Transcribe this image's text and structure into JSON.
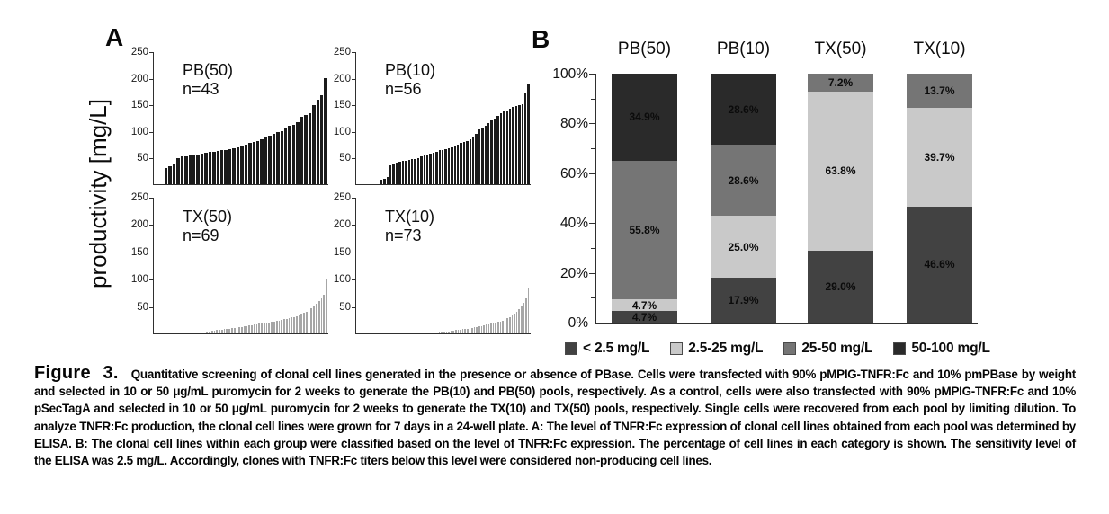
{
  "colors": {
    "panel_a_dark_bars": "#1b1b1b",
    "panel_a_light_bars": "#a6a6a6",
    "axis": "#2f2f2f",
    "cat_lt_2_5": "#424242",
    "cat_2_5_25": "#c9c9c9",
    "cat_25_50": "#757575",
    "cat_50_100": "#2a2a2a"
  },
  "chart_data": [
    {
      "id": "panel-a",
      "panel_label": "A",
      "type": "bar",
      "subtype": "sorted-clone-productivity",
      "ylabel": "productivity [mg/L]",
      "ylim": [
        0,
        250
      ],
      "ytick_labels": [
        "250",
        "200",
        "150",
        "100",
        "50"
      ],
      "ytick_values": [
        250,
        200,
        150,
        100,
        50
      ],
      "grid": false,
      "subplots": [
        {
          "pool": "PB(50)",
          "n_label": "n=43",
          "n": 43,
          "bar_color": "#1b1b1b",
          "values": [
            0,
            0,
            30,
            34,
            37,
            50,
            52,
            53,
            54,
            55,
            56,
            58,
            60,
            61,
            62,
            63,
            64,
            65,
            66,
            68,
            70,
            72,
            75,
            78,
            80,
            82,
            85,
            88,
            92,
            95,
            98,
            100,
            108,
            110,
            112,
            118,
            128,
            131,
            134,
            150,
            160,
            168,
            200
          ]
        },
        {
          "pool": "PB(10)",
          "n_label": "n=56",
          "n": 56,
          "bar_color": "#1b1b1b",
          "values": [
            0,
            0,
            0,
            0,
            0,
            0,
            0,
            8,
            10,
            14,
            35,
            38,
            40,
            42,
            44,
            45,
            46,
            47,
            48,
            50,
            52,
            54,
            56,
            58,
            60,
            62,
            64,
            65,
            66,
            68,
            70,
            72,
            75,
            78,
            80,
            82,
            85,
            90,
            95,
            103,
            105,
            110,
            115,
            120,
            125,
            130,
            135,
            138,
            140,
            143,
            146,
            148,
            150,
            152,
            172,
            188
          ]
        },
        {
          "pool": "TX(50)",
          "n_label": "n=69",
          "n": 69,
          "bar_color": "#a6a6a6",
          "values": [
            0,
            0,
            0,
            0,
            0,
            0,
            0,
            0,
            0,
            0,
            0,
            0,
            0,
            0,
            0,
            0,
            0,
            0,
            0,
            0,
            3,
            4,
            5,
            5,
            6,
            6,
            7,
            8,
            8,
            9,
            10,
            10,
            11,
            12,
            12,
            13,
            14,
            15,
            15,
            16,
            17,
            18,
            18,
            19,
            20,
            20,
            21,
            22,
            23,
            24,
            25,
            26,
            27,
            28,
            29,
            30,
            32,
            34,
            36,
            38,
            40,
            43,
            46,
            50,
            55,
            60,
            65,
            72,
            100
          ]
        },
        {
          "pool": "TX(10)",
          "n_label": "n=73",
          "n": 73,
          "bar_color": "#a6a6a6",
          "values": [
            0,
            0,
            0,
            0,
            0,
            0,
            0,
            0,
            0,
            0,
            0,
            0,
            0,
            0,
            0,
            0,
            0,
            0,
            0,
            0,
            0,
            0,
            0,
            0,
            0,
            0,
            0,
            0,
            0,
            0,
            0,
            0,
            0,
            0,
            2,
            3,
            3,
            4,
            4,
            5,
            5,
            6,
            6,
            7,
            8,
            8,
            9,
            10,
            10,
            11,
            12,
            13,
            14,
            15,
            16,
            17,
            18,
            19,
            20,
            21,
            22,
            24,
            26,
            28,
            30,
            33,
            36,
            40,
            44,
            50,
            57,
            65,
            85
          ]
        }
      ]
    },
    {
      "id": "panel-b",
      "panel_label": "B",
      "type": "bar",
      "subtype": "stacked-100-percent",
      "categories": [
        "PB(50)",
        "PB(10)",
        "TX(50)",
        "TX(10)"
      ],
      "ytick_labels": [
        "100%",
        "80%",
        "60%",
        "40%",
        "20%",
        "0%"
      ],
      "ylim": [
        0,
        100
      ],
      "legend_position": "bottom",
      "series": [
        {
          "name": "< 2.5 mg/L",
          "color": "#424242",
          "values": [
            4.7,
            17.9,
            29.0,
            46.6
          ]
        },
        {
          "name": "2.5-25 mg/L",
          "color": "#c9c9c9",
          "values": [
            4.7,
            25.0,
            63.8,
            39.7
          ]
        },
        {
          "name": "25-50 mg/L",
          "color": "#757575",
          "values": [
            55.8,
            28.6,
            7.2,
            13.7
          ]
        },
        {
          "name": "50-100 mg/L",
          "color": "#2a2a2a",
          "values": [
            34.9,
            28.6,
            0,
            0
          ]
        }
      ]
    }
  ],
  "caption": {
    "segments": [
      {
        "text": "Figure 3.",
        "style": "fig-label"
      },
      {
        "text": "Quantitative screening of clonal cell lines generated in the presence or absence of PBase. Cells were transfected with 90% pMPIG-TNFR:Fc and 10% pmPBase by weight and selected in 10 or 50 μg/mL puromycin for 2 weeks to generate the PB(10) and PB(50) pools, respectively. As a control, cells were also transfected with 90% pMPIG-TNFR:Fc and 10% pSecTagA and selected in 10 or 50 μg/mL puromycin for 2 weeks to generate the TX(10) and TX(50) pools, respectively. Single cells were recovered from each pool by limiting dilution. To analyze TNFR:Fc production, the clonal cell lines were grown for 7 days in a 24-well plate. ",
        "style": "normal"
      },
      {
        "text": "A",
        "style": "bold"
      },
      {
        "text": ": The level of TNFR:Fc expression of clonal cell lines obtained from each pool was determined by ELISA. ",
        "style": "normal"
      },
      {
        "text": "B",
        "style": "bold"
      },
      {
        "text": ": The clonal cell lines within each group were classified based on the level of TNFR:Fc expression. The percentage of cell lines in each category is shown. The sensitivity level of the ELISA was 2.5 mg/L. Accordingly, clones with TNFR:Fc titers below this level were considered non-producing cell lines.",
        "style": "normal"
      }
    ]
  }
}
